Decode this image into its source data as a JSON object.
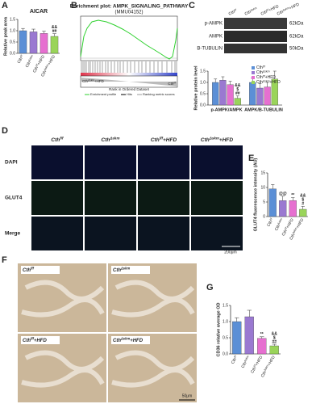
{
  "figure": {
    "panel_letters": [
      "A",
      "B",
      "C",
      "D",
      "E",
      "F",
      "G"
    ],
    "gsea": {
      "title": "Enrichment plot: AMPK_SIGNALING_PATHWAY",
      "subtitle": "(MMU04152)",
      "left_group": {
        "base": "Cth",
        "sup": "Δskm",
        "suffix": "+HFD"
      },
      "right_group": {
        "base": "Cth",
        "sup": "f/f"
      },
      "x_axis": "Rank in Ordered Dataset",
      "legend": [
        "Enrichment profile",
        "Hits",
        "Ranking metric scores"
      ]
    },
    "blot": {
      "columns": [
        {
          "base": "Cth",
          "sup": "f/f"
        },
        {
          "base": "Cth",
          "sup": "Δskm"
        },
        {
          "base": "Cth",
          "sup": "f/f",
          "suffix": "+HFD"
        },
        {
          "base": "Cth",
          "sup": "Δskm",
          "suffix": "+HFD"
        }
      ],
      "rows": [
        {
          "name": "p-AMPK",
          "size": "62kDa"
        },
        {
          "name": "AMPK",
          "size": "62kDa"
        },
        {
          "name": "B-TUBULIN",
          "size": "50kDa"
        }
      ]
    },
    "if_grid": {
      "columns": [
        {
          "base": "Cth",
          "sup": "f/f"
        },
        {
          "base": "Cth",
          "sup": "Δskm"
        },
        {
          "base": "Cth",
          "sup": "f/f",
          "suffix": "+HFD"
        },
        {
          "base": "Cth",
          "sup": "Δskm",
          "suffix": "+HFD"
        }
      ],
      "rows": [
        "DAPI",
        "GLUT4",
        "Merge"
      ],
      "scale": "200μm"
    },
    "ihc_grid": {
      "panels": [
        {
          "base": "Cth",
          "sup": "f/f"
        },
        {
          "base": "Cth",
          "sup": "Δskm"
        },
        {
          "base": "Cth",
          "sup": "f/f",
          "suffix": "+HFD"
        },
        {
          "base": "Cth",
          "sup": "Δskm",
          "suffix": "+HFD"
        }
      ],
      "scale": "50μm"
    }
  },
  "chart_data": [
    {
      "type": "bar",
      "title": "AICAR",
      "y_label": "Relative peak area",
      "categories": [
        {
          "base": "Cth",
          "sup": "f/f"
        },
        {
          "base": "Cth",
          "sup": "Δskm"
        },
        {
          "base": "Cth",
          "sup": "f/f",
          "suffix": "+HFD"
        },
        {
          "base": "Cth",
          "sup": "Δskm",
          "suffix": "+HFD"
        }
      ],
      "values": [
        1.0,
        0.95,
        0.88,
        0.75
      ],
      "errors": [
        0.1,
        0.12,
        0.1,
        0.12
      ],
      "colors": [
        "#5b8fd6",
        "#9a79d1",
        "#e66fd0",
        "#9ad45a"
      ],
      "annotations": [
        null,
        null,
        null,
        [
          "&&",
          "##"
        ]
      ],
      "ylim": [
        0,
        1.5
      ],
      "yticks": [
        0.0,
        0.5,
        1.0,
        1.5
      ]
    },
    {
      "type": "grouped-bar",
      "y_label": "Relative protein level",
      "categories": [
        "p-AMPK/AMPK",
        "AMPK/B-TUBULIN"
      ],
      "series": [
        {
          "name": {
            "base": "Cth",
            "sup": "f/f"
          },
          "color": "#5b8fd6",
          "values": [
            1.0,
            1.0
          ],
          "errors": [
            0.15,
            0.2
          ],
          "annotations": [
            null,
            null
          ]
        },
        {
          "name": {
            "base": "Cth",
            "sup": "Δskm"
          },
          "color": "#9a79d1",
          "values": [
            1.1,
            0.75
          ],
          "errors": [
            0.15,
            0.2
          ],
          "annotations": [
            null,
            null
          ]
        },
        {
          "name": {
            "base": "Cth",
            "sup": "f/f",
            "suffix": "+HFD"
          },
          "color": "#e66fd0",
          "values": [
            0.9,
            0.8
          ],
          "errors": [
            0.15,
            0.2
          ],
          "annotations": [
            null,
            null
          ]
        },
        {
          "name": {
            "base": "Cth",
            "sup": "Δskm",
            "suffix": "+HFD"
          },
          "color": "#9ad45a",
          "values": [
            0.3,
            1.15
          ],
          "errors": [
            0.1,
            0.35
          ],
          "annotations": [
            [
              "&&",
              "$",
              "##"
            ],
            null
          ]
        }
      ],
      "ylim": [
        0,
        1.5
      ],
      "yticks": [
        0.0,
        0.5,
        1.0,
        1.5
      ],
      "legend": "top-right"
    },
    {
      "type": "bar",
      "y_label": "GLUT4 fluorescence intensity (AU)",
      "categories": [
        {
          "base": "Cth",
          "sup": "f/f"
        },
        {
          "base": "Cth",
          "sup": "Δskm"
        },
        {
          "base": "Cth",
          "sup": "f/f",
          "suffix": "+HFD"
        },
        {
          "base": "Cth",
          "sup": "Δskm",
          "suffix": "+HFD"
        }
      ],
      "values": [
        9.5,
        5.5,
        5.5,
        2.5
      ],
      "errors": [
        1.5,
        1.5,
        1.0,
        1.0
      ],
      "colors": [
        "#5b8fd6",
        "#9a79d1",
        "#e66fd0",
        "#9ad45a"
      ],
      "annotations": [
        null,
        [
          "@@"
        ],
        [
          "**"
        ],
        [
          "&&",
          "$",
          "#"
        ]
      ],
      "ylim": [
        0,
        15
      ],
      "yticks": [
        0,
        5,
        10,
        15
      ]
    },
    {
      "type": "bar",
      "y_label": "CD36 relative average OD",
      "categories": [
        {
          "base": "Cth",
          "sup": "f/f"
        },
        {
          "base": "Cth",
          "sup": "Δskm"
        },
        {
          "base": "Cth",
          "sup": "f/f",
          "suffix": "+HFD"
        },
        {
          "base": "Cth",
          "sup": "Δskm",
          "suffix": "+HFD"
        }
      ],
      "values": [
        1.0,
        1.15,
        0.48,
        0.25
      ],
      "errors": [
        0.12,
        0.2,
        0.05,
        0.05
      ],
      "colors": [
        "#5b8fd6",
        "#9a79d1",
        "#e66fd0",
        "#9ad45a"
      ],
      "annotations": [
        null,
        null,
        [
          "**"
        ],
        [
          "&&",
          "$",
          "##"
        ]
      ],
      "ylim": [
        0,
        1.5
      ],
      "yticks": [
        0.0,
        0.5,
        1.0,
        1.5
      ]
    }
  ]
}
